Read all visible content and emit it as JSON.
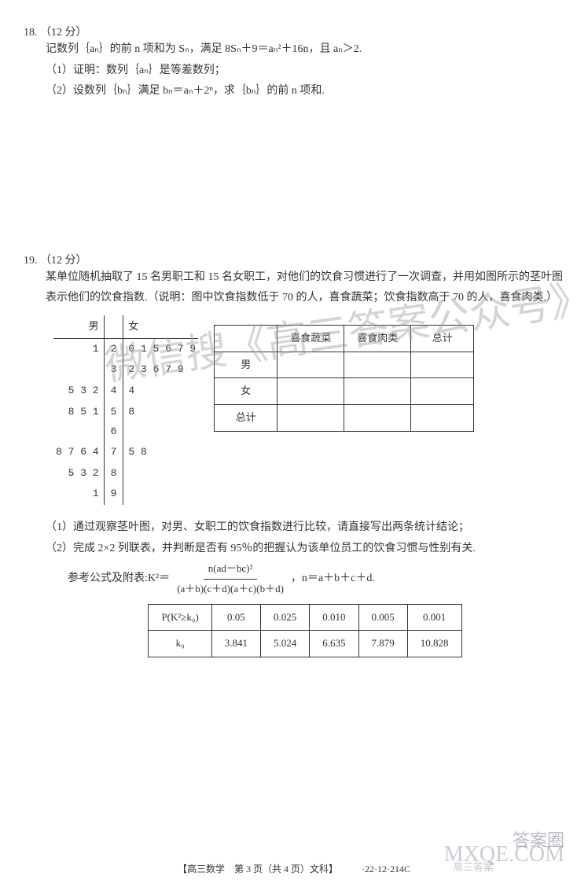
{
  "page": {
    "footer": "【高三数学　第 3 页（共 4 页）文科】",
    "footer_code": "·22·12·214C"
  },
  "p18": {
    "number": "18.",
    "points": "（12 分）",
    "line1": "记数列｛aₙ｝的前 n 项和为 Sₙ，满足 8Sₙ＋9＝aₙ²＋16n，且 aₙ＞2.",
    "sub1": "（1）证明：数列｛aₙ｝是等差数列；",
    "sub2": "（2）设数列｛bₙ｝满足 bₙ＝aₙ＋2ⁿ，求｛bₙ｝的前 n 项和."
  },
  "p19": {
    "number": "19.",
    "points": "（12 分）",
    "intro": "某单位随机抽取了 15 名男职工和 15 名女职工，对他们的饮食习惯进行了一次调查，并用如图所示的茎叶图表示他们的饮食指数.（说明：图中饮食指数低于 70 的人，喜食蔬菜；饮食指数高于 70 的人，喜食肉类.）",
    "stemleaf_headers": {
      "left": "男",
      "right": "女"
    },
    "stemleaf_rows": [
      {
        "left": "1",
        "stem": "2",
        "right": "0 1 5 6 7 9"
      },
      {
        "left": "",
        "stem": "3",
        "right": "2 3 6 7 9"
      },
      {
        "left": "5 3 2",
        "stem": "4",
        "right": "4"
      },
      {
        "left": "8 5 1",
        "stem": "5",
        "right": "8"
      },
      {
        "left": "",
        "stem": "6",
        "right": ""
      },
      {
        "left": "8 7 6 4",
        "stem": "7",
        "right": "5 8"
      },
      {
        "left": "5 3 2",
        "stem": "8",
        "right": ""
      },
      {
        "left": "1",
        "stem": "9",
        "right": ""
      }
    ],
    "ct_headers": {
      "c1": "喜食蔬菜",
      "c2": "喜食肉类",
      "c3": "总计"
    },
    "ct_rows": {
      "r1": "男",
      "r2": "女",
      "r3": "总计"
    },
    "sub1": "（1）通过观察茎叶图，对男、女职工的饮食指数进行比较，请直接写出两条统计结论；",
    "sub2": "（2）完成 2×2 列联表，并判断是否有 95％的把握认为该单位员工的饮食习惯与性别有关.",
    "ref_label": "参考公式及附表:K²＝",
    "frac_num": "n(ad－bc)²",
    "frac_den": "(a＋b)(c＋d)(a＋c)(b＋d)",
    "ref_tail": "，n＝a＋b＋c＋d.",
    "k_header": "P(K²≥k₀)",
    "k_p": [
      "0.05",
      "0.025",
      "0.010",
      "0.005",
      "0.001"
    ],
    "k_row_label": "k₀",
    "k_v": [
      "3.841",
      "5.024",
      "6.635",
      "7.879",
      "10.828"
    ]
  },
  "wm": {
    "a": "微信搜《高三答案公众号》",
    "b": "号》",
    "c": "答案圈",
    "d": "MXQE.COM",
    "e": "·高三答案"
  }
}
